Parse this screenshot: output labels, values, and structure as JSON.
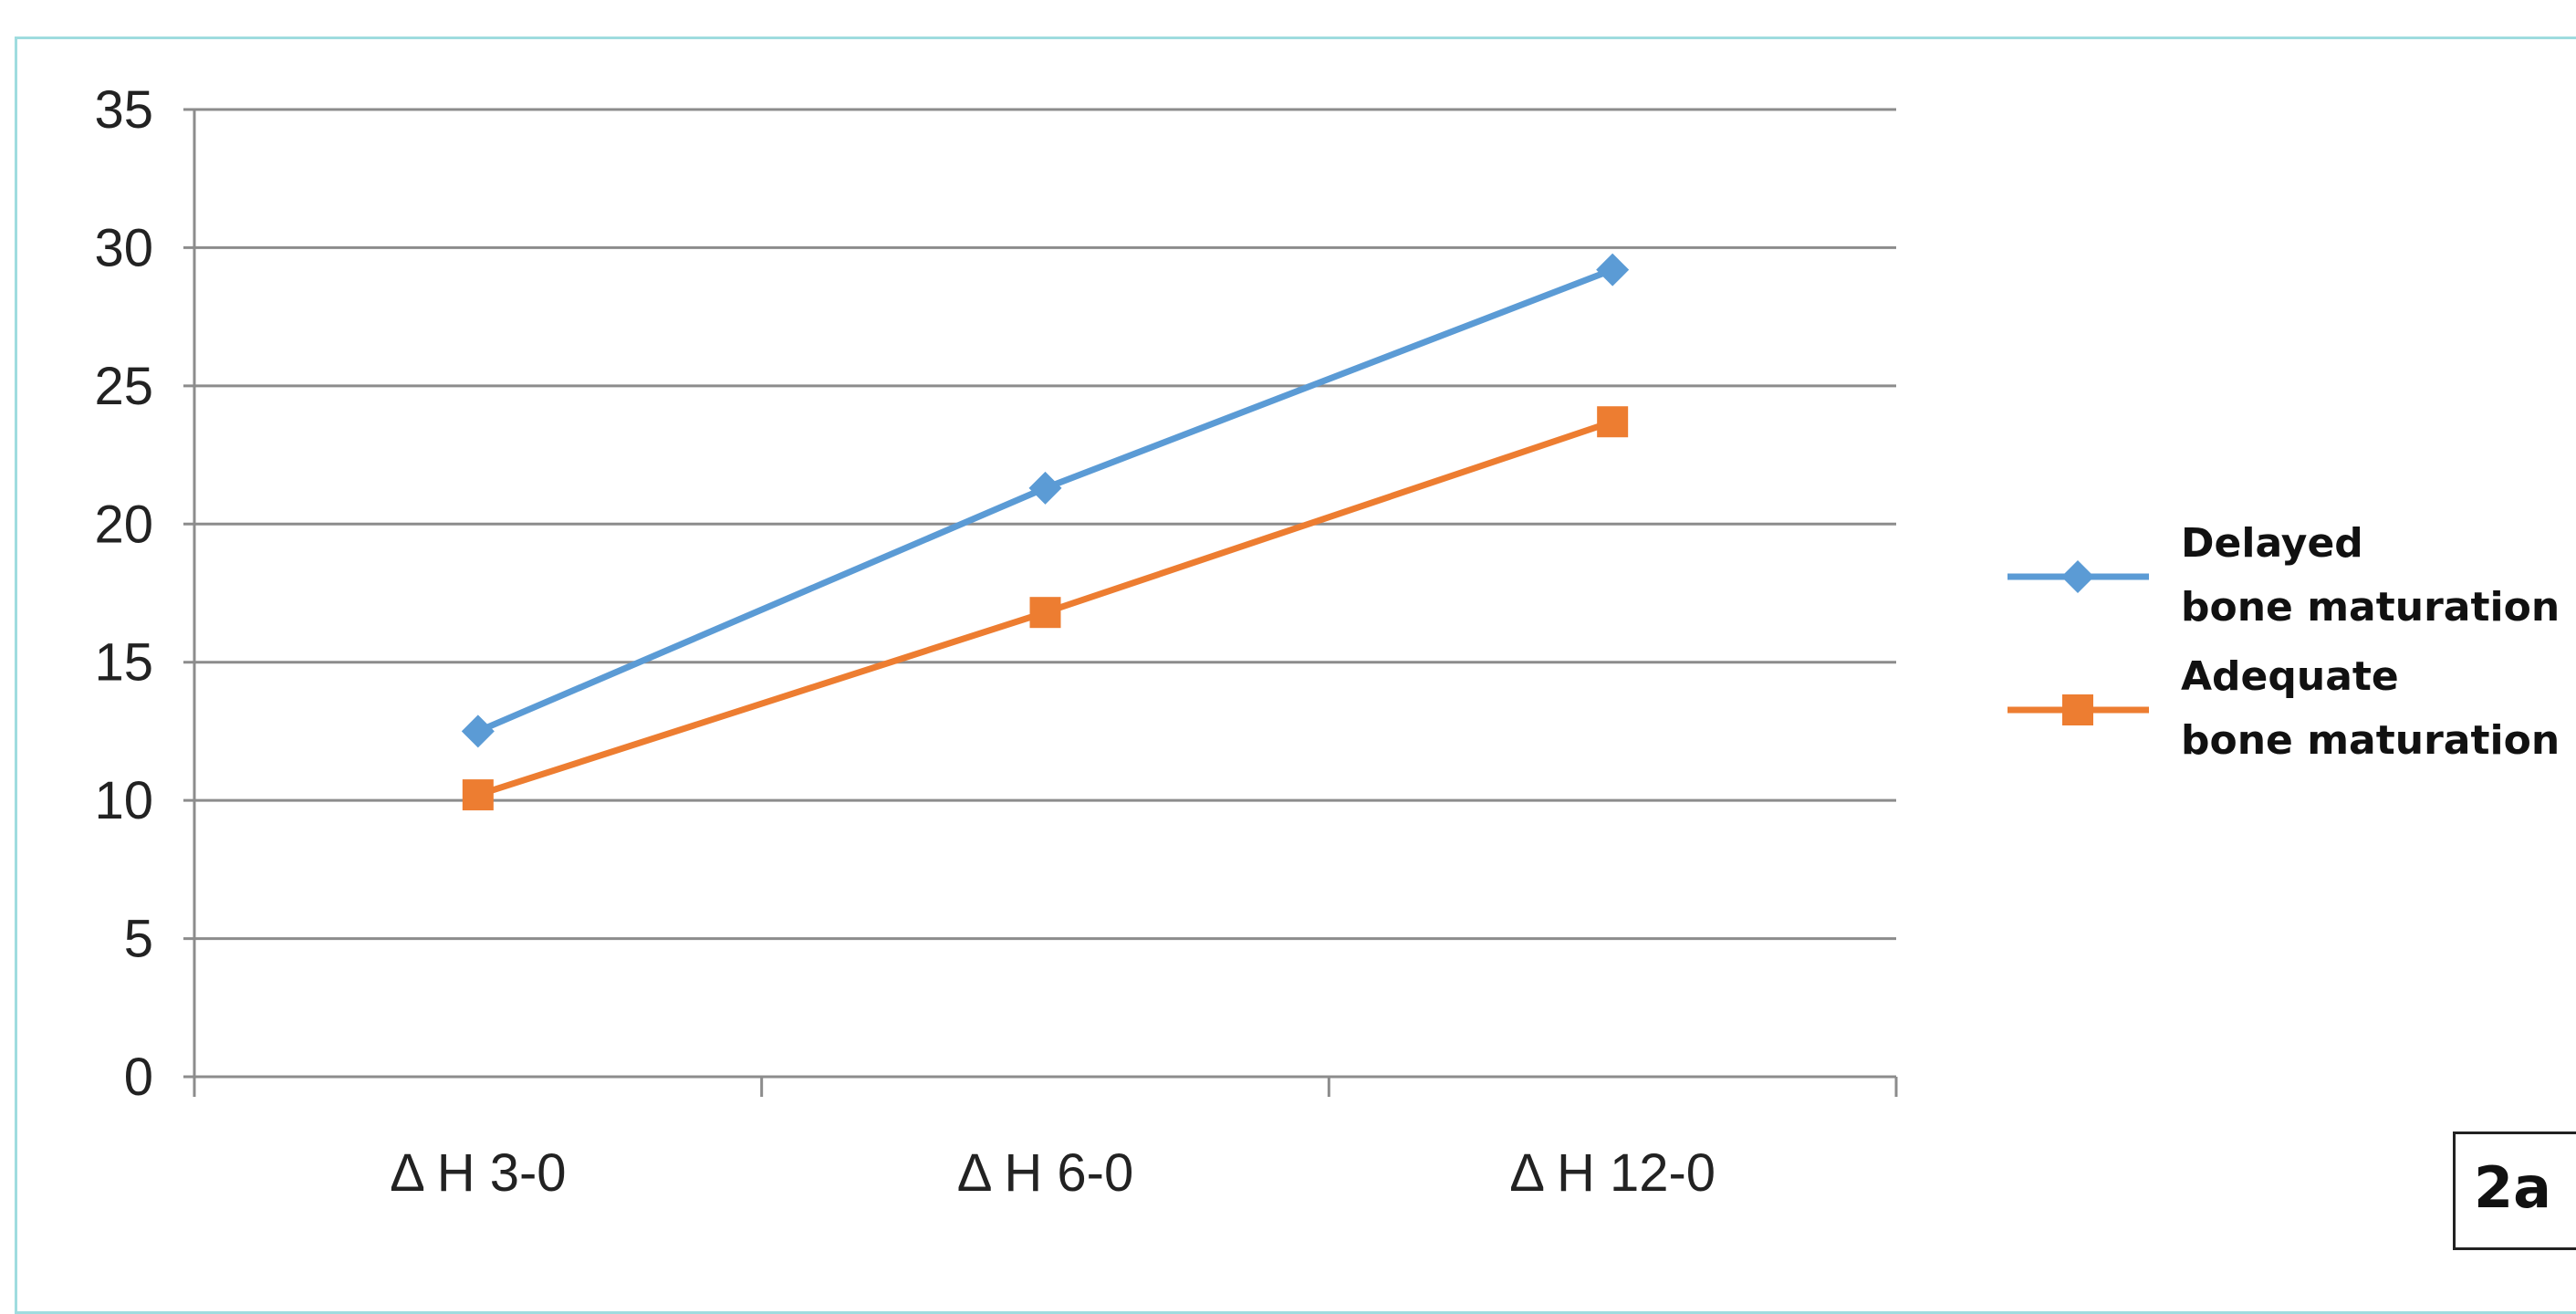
{
  "chart_data": {
    "type": "line",
    "categories": [
      "Δ H 3-0",
      "Δ H 6-0",
      "Δ H 12-0"
    ],
    "series": [
      {
        "name_lines": [
          "Delayed",
          "bone maturation"
        ],
        "values": [
          12.5,
          21.3,
          29.2
        ],
        "color": "#5b9bd5",
        "marker": "diamond"
      },
      {
        "name_lines": [
          "Adequate",
          "bone maturation"
        ],
        "values": [
          10.2,
          16.8,
          23.7
        ],
        "color": "#ed7d31",
        "marker": "square"
      }
    ],
    "yticks": [
      "0",
      "5",
      "10",
      "15",
      "20",
      "25",
      "30",
      "35"
    ],
    "ylim": [
      0,
      35
    ],
    "grid": true,
    "legend": "right"
  },
  "panel_label": "2a"
}
